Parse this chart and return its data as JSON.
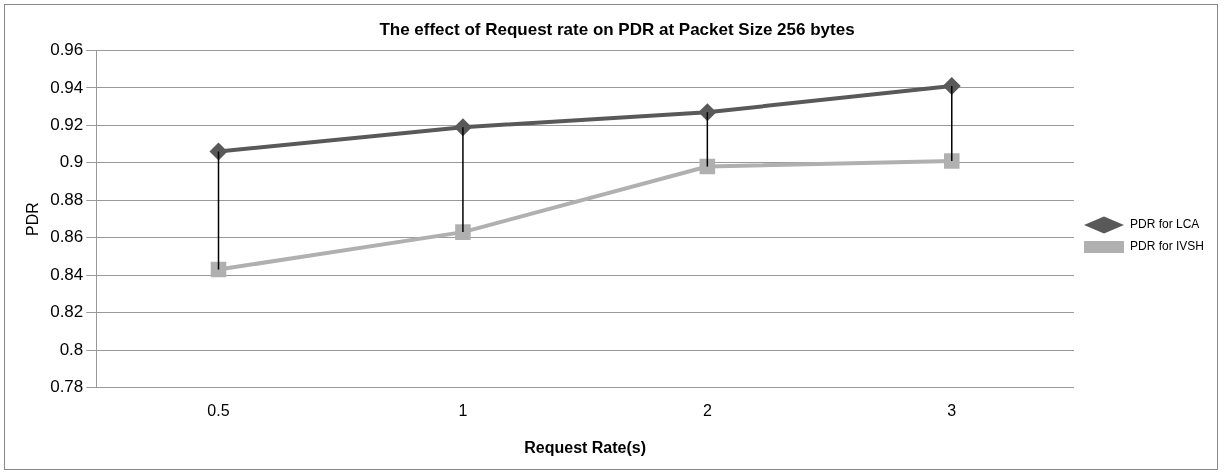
{
  "chart_data": {
    "type": "line",
    "title": "The effect of Request rate on PDR at Packet Size 256 bytes",
    "xlabel": "Request Rate(s)",
    "ylabel": "PDR",
    "categories": [
      "0.5",
      "1",
      "2",
      "3"
    ],
    "series": [
      {
        "name": "PDR for LCA",
        "color": "#595959",
        "marker": "diamond",
        "values": [
          0.906,
          0.919,
          0.927,
          0.941
        ],
        "errors": [
          [
            0.843,
            0.906
          ],
          [
            0.863,
            0.919
          ],
          [
            0.898,
            0.927
          ],
          [
            0.901,
            0.941
          ]
        ]
      },
      {
        "name": "PDR for IVSH",
        "color": "#b0b0b0",
        "marker": "square",
        "values": [
          0.843,
          0.863,
          0.898,
          0.901
        ]
      }
    ],
    "ylim": [
      0.78,
      0.96
    ],
    "yticks": [
      0.78,
      0.8,
      0.82,
      0.84,
      0.86,
      0.88,
      0.9,
      0.92,
      0.94,
      0.96
    ],
    "grid": "y",
    "legend": "right",
    "line_style": "solid"
  }
}
